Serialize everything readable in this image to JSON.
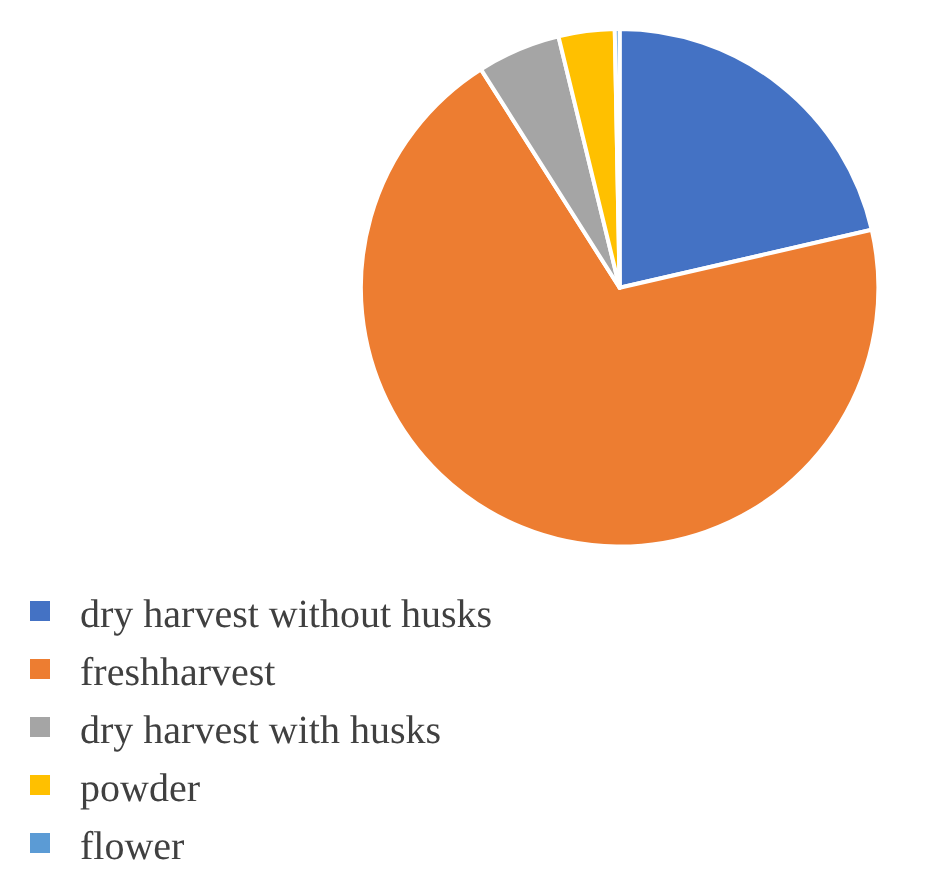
{
  "chart_data": {
    "type": "pie",
    "categories": [
      "dry harvest without husks",
      "freshharvest",
      "dry harvest with husks",
      "powder",
      "flower"
    ],
    "values": [
      21.4,
      69.6,
      5.2,
      3.5,
      0.3
    ],
    "colors": [
      "#4472c4",
      "#ed7d31",
      "#a5a5a5",
      "#ffc000",
      "#5b9bd5"
    ],
    "legend": "bottom"
  }
}
